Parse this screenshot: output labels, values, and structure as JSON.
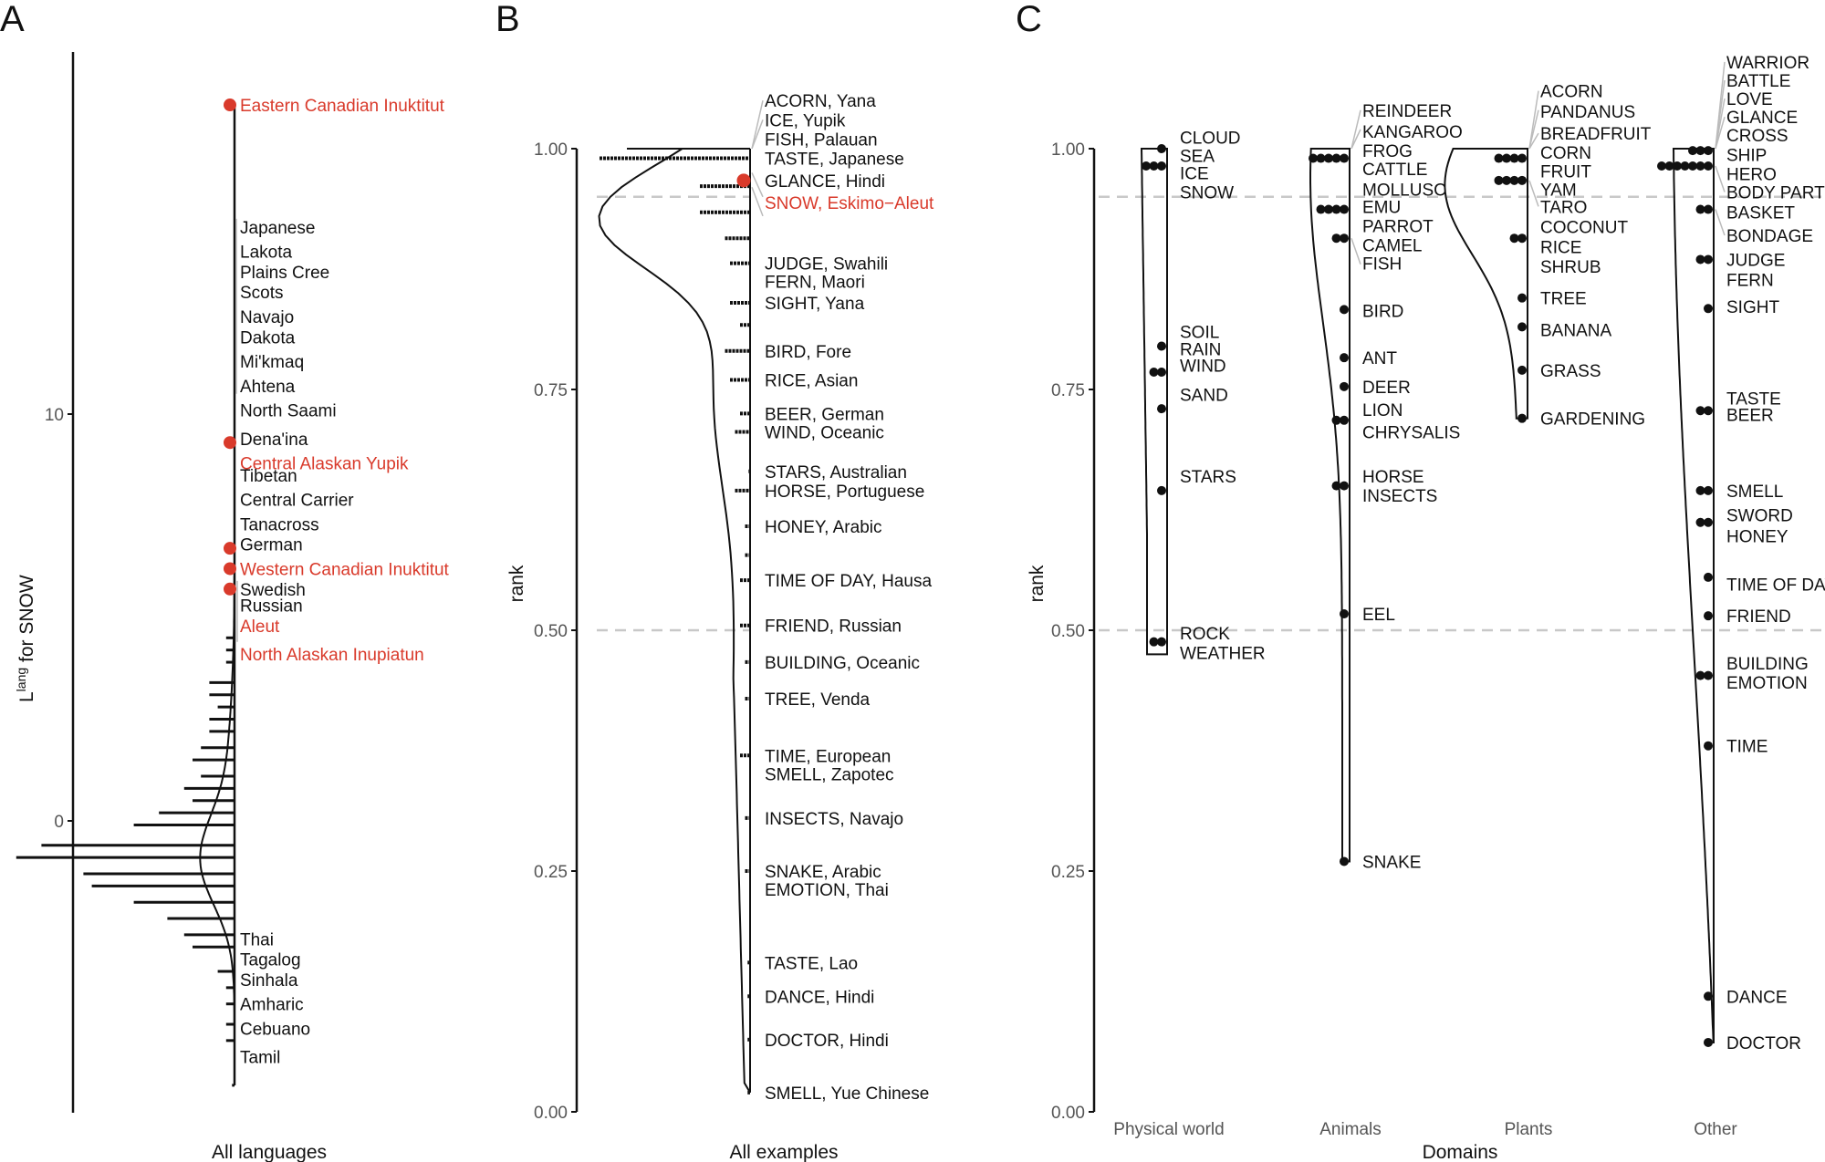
{
  "figure": {
    "panels": [
      "A",
      "B",
      "C"
    ]
  },
  "colors": {
    "highlight": "#d93a2b",
    "ink": "#111111",
    "guide": "#bbbbbb",
    "reference_line": "#c8c8c8"
  },
  "chart_data": [
    {
      "panel": "A",
      "type": "histogram-with-density",
      "ylabel_main": "L",
      "ylabel_sup": "lang",
      "ylabel_rest": " for SNOW",
      "xlabel": "All languages",
      "ylim": [
        -7.2,
        18.9
      ],
      "yticks": [
        0,
        10
      ],
      "histogram_bins": [
        {
          "y": 4.5,
          "count": 1
        },
        {
          "y": 4.2,
          "count": 1
        },
        {
          "y": 3.9,
          "count": 1
        },
        {
          "y": 3.4,
          "count": 3
        },
        {
          "y": 3.1,
          "count": 3
        },
        {
          "y": 2.8,
          "count": 2
        },
        {
          "y": 2.5,
          "count": 3
        },
        {
          "y": 2.2,
          "count": 3
        },
        {
          "y": 1.8,
          "count": 4
        },
        {
          "y": 1.5,
          "count": 5
        },
        {
          "y": 1.1,
          "count": 4
        },
        {
          "y": 0.8,
          "count": 6
        },
        {
          "y": 0.5,
          "count": 5
        },
        {
          "y": 0.2,
          "count": 9
        },
        {
          "y": -0.1,
          "count": 12
        },
        {
          "y": -0.6,
          "count": 23
        },
        {
          "y": -0.9,
          "count": 26
        },
        {
          "y": -1.3,
          "count": 18
        },
        {
          "y": -1.6,
          "count": 17
        },
        {
          "y": -2.0,
          "count": 12
        },
        {
          "y": -2.4,
          "count": 8
        },
        {
          "y": -2.8,
          "count": 6
        },
        {
          "y": -3.1,
          "count": 5
        },
        {
          "y": -3.7,
          "count": 2
        },
        {
          "y": -4.1,
          "count": 1
        },
        {
          "y": -4.5,
          "count": 1
        },
        {
          "y": -5.0,
          "count": 1
        },
        {
          "y": -5.4,
          "count": 1
        },
        {
          "y": -6.5,
          "count": 0.3
        }
      ],
      "highlight_points": [
        {
          "label": "Eastern Canadian Inuktitut",
          "y": 17.6
        },
        {
          "label": "Central Alaskan Yupik",
          "y": 9.3
        },
        {
          "label": "German",
          "y": 6.7
        },
        {
          "label": "Western Canadian Inuktitut",
          "y": 6.2
        },
        {
          "label": "Swedish",
          "y": 5.7
        }
      ],
      "labels": [
        {
          "text": "Eastern Canadian Inuktitut",
          "y": 17.6,
          "highlight": true
        },
        {
          "text": "Japanese",
          "y": 14.6,
          "highlight": false
        },
        {
          "text": "Lakota",
          "y": 14.0,
          "highlight": false
        },
        {
          "text": "Plains Cree",
          "y": 13.5,
          "highlight": false
        },
        {
          "text": "Scots",
          "y": 13.0,
          "highlight": false
        },
        {
          "text": "Navajo",
          "y": 12.4,
          "highlight": false
        },
        {
          "text": "Dakota",
          "y": 11.9,
          "highlight": false
        },
        {
          "text": "Mi'kmaq",
          "y": 11.3,
          "highlight": false
        },
        {
          "text": "Ahtena",
          "y": 10.7,
          "highlight": false
        },
        {
          "text": "North Saami",
          "y": 10.1,
          "highlight": false
        },
        {
          "text": "Dena'ina",
          "y": 9.4,
          "highlight": false
        },
        {
          "text": "Central Alaskan Yupik",
          "y": 8.8,
          "highlight": true
        },
        {
          "text": "Tibetan",
          "y": 8.5,
          "highlight": false
        },
        {
          "text": "Central Carrier",
          "y": 7.9,
          "highlight": false
        },
        {
          "text": "Tanacross",
          "y": 7.3,
          "highlight": false
        },
        {
          "text": "German",
          "y": 6.8,
          "highlight": false
        },
        {
          "text": "Western Canadian Inuktitut",
          "y": 6.2,
          "highlight": true
        },
        {
          "text": "Swedish",
          "y": 5.7,
          "highlight": false
        },
        {
          "text": "Russian",
          "y": 5.3,
          "highlight": false
        },
        {
          "text": "Aleut",
          "y": 4.8,
          "highlight": true
        },
        {
          "text": "North Alaskan Inupiatun",
          "y": 4.1,
          "highlight": true
        },
        {
          "text": "Thai",
          "y": -2.9,
          "highlight": false
        },
        {
          "text": "Tagalog",
          "y": -3.4,
          "highlight": false
        },
        {
          "text": "Sinhala",
          "y": -3.9,
          "highlight": false
        },
        {
          "text": "Amharic",
          "y": -4.5,
          "highlight": false
        },
        {
          "text": "Cebuano",
          "y": -5.1,
          "highlight": false
        },
        {
          "text": "Tamil",
          "y": -5.8,
          "highlight": false
        }
      ]
    },
    {
      "panel": "B",
      "type": "histogram-with-density",
      "ylabel": "rank",
      "xlabel": "All examples",
      "ylim": [
        0,
        1
      ],
      "yticks": [
        "0.00",
        "0.25",
        "0.50",
        "0.75",
        "1.00"
      ],
      "reference_lines": [
        0.95,
        0.5
      ],
      "histogram_bins": [
        {
          "y": 0.99,
          "count": 30
        },
        {
          "y": 0.961,
          "count": 10
        },
        {
          "y": 0.934,
          "count": 10
        },
        {
          "y": 0.907,
          "count": 5
        },
        {
          "y": 0.881,
          "count": 4
        },
        {
          "y": 0.84,
          "count": 4
        },
        {
          "y": 0.817,
          "count": 2
        },
        {
          "y": 0.79,
          "count": 5
        },
        {
          "y": 0.76,
          "count": 4
        },
        {
          "y": 0.725,
          "count": 2
        },
        {
          "y": 0.706,
          "count": 3
        },
        {
          "y": 0.665,
          "count": 0.3
        },
        {
          "y": 0.645,
          "count": 3
        },
        {
          "y": 0.608,
          "count": 1
        },
        {
          "y": 0.578,
          "count": 1
        },
        {
          "y": 0.552,
          "count": 2
        },
        {
          "y": 0.505,
          "count": 2
        },
        {
          "y": 0.467,
          "count": 1
        },
        {
          "y": 0.429,
          "count": 1
        },
        {
          "y": 0.37,
          "count": 2
        },
        {
          "y": 0.305,
          "count": 1
        },
        {
          "y": 0.25,
          "count": 1
        },
        {
          "y": 0.155,
          "count": 0.5
        },
        {
          "y": 0.12,
          "count": 0.5
        },
        {
          "y": 0.075,
          "count": 0.5
        },
        {
          "y": 0.02,
          "count": 0.5
        }
      ],
      "highlight_points": [
        {
          "label": "SNOW, Eskimo−Aleut",
          "y": 0.967
        }
      ],
      "labels": [
        {
          "text": "ACORN, Yana",
          "y": 1.0,
          "highlight": false
        },
        {
          "text": "ICE, Yupik",
          "y": 1.0,
          "highlight": false
        },
        {
          "text": "FISH, Palauan",
          "y": 1.0,
          "highlight": false
        },
        {
          "text": "TASTE, Japanese",
          "y": 0.99,
          "highlight": false
        },
        {
          "text": "GLANCE, Hindi",
          "y": 0.967,
          "highlight": false
        },
        {
          "text": "SNOW, Eskimo−Aleut",
          "y": 0.967,
          "highlight": true
        },
        {
          "text": "JUDGE, Swahili",
          "y": 0.881,
          "highlight": false
        },
        {
          "text": "FERN, Maori",
          "y": 0.881,
          "highlight": false
        },
        {
          "text": "SIGHT, Yana",
          "y": 0.84,
          "highlight": false
        },
        {
          "text": "BIRD, Fore",
          "y": 0.79,
          "highlight": false
        },
        {
          "text": "RICE, Asian",
          "y": 0.76,
          "highlight": false
        },
        {
          "text": "BEER, German",
          "y": 0.725,
          "highlight": false
        },
        {
          "text": "WIND, Oceanic",
          "y": 0.706,
          "highlight": false
        },
        {
          "text": "STARS, Australian",
          "y": 0.665,
          "highlight": false
        },
        {
          "text": "HORSE, Portuguese",
          "y": 0.645,
          "highlight": false
        },
        {
          "text": "HONEY, Arabic",
          "y": 0.608,
          "highlight": false
        },
        {
          "text": "TIME OF DAY, Hausa",
          "y": 0.552,
          "highlight": false
        },
        {
          "text": "FRIEND, Russian",
          "y": 0.505,
          "highlight": false
        },
        {
          "text": "BUILDING, Oceanic",
          "y": 0.467,
          "highlight": false
        },
        {
          "text": "TREE, Venda",
          "y": 0.429,
          "highlight": false
        },
        {
          "text": "TIME, European",
          "y": 0.37,
          "highlight": false
        },
        {
          "text": "SMELL, Zapotec",
          "y": 0.37,
          "highlight": false
        },
        {
          "text": "INSECTS, Navajo",
          "y": 0.305,
          "highlight": false
        },
        {
          "text": "SNAKE, Arabic",
          "y": 0.25,
          "highlight": false
        },
        {
          "text": "EMOTION, Thai",
          "y": 0.25,
          "highlight": false
        },
        {
          "text": "TASTE, Lao",
          "y": 0.155,
          "highlight": false
        },
        {
          "text": "DANCE, Hindi",
          "y": 0.12,
          "highlight": false
        },
        {
          "text": "DOCTOR, Hindi",
          "y": 0.075,
          "highlight": false
        },
        {
          "text": "SMELL, Yue Chinese",
          "y": 0.02,
          "highlight": false
        }
      ]
    },
    {
      "panel": "C",
      "type": "violin-dotplot",
      "ylabel": "rank",
      "xlabel": "Domains",
      "ylim": [
        0,
        1
      ],
      "yticks": [
        "0.00",
        "0.25",
        "0.50",
        "0.75",
        "1.00"
      ],
      "reference_lines": [
        0.95,
        0.5
      ],
      "categories": [
        "Physical world",
        "Animals",
        "Plants",
        "Other"
      ],
      "groups": [
        {
          "name": "Physical world",
          "range": [
            0.475,
            1.0
          ],
          "dots": [
            {
              "y": 1.0,
              "n": 1
            },
            {
              "y": 0.982,
              "n": 3
            },
            {
              "y": 0.795,
              "n": 1
            },
            {
              "y": 0.768,
              "n": 2
            },
            {
              "y": 0.73,
              "n": 1
            },
            {
              "y": 0.645,
              "n": 1
            },
            {
              "y": 0.488,
              "n": 2
            }
          ],
          "labels": [
            "CLOUD",
            "SEA",
            "ICE",
            "SNOW",
            "SOIL",
            "RAIN",
            "WIND",
            "SAND",
            "STARS",
            "ROCK",
            "WEATHER"
          ]
        },
        {
          "name": "Animals",
          "range": [
            0.26,
            1.0
          ],
          "dots": [
            {
              "y": 0.99,
              "n": 5
            },
            {
              "y": 0.937,
              "n": 4
            },
            {
              "y": 0.907,
              "n": 2
            },
            {
              "y": 0.833,
              "n": 1
            },
            {
              "y": 0.783,
              "n": 1
            },
            {
              "y": 0.753,
              "n": 1
            },
            {
              "y": 0.718,
              "n": 2
            },
            {
              "y": 0.65,
              "n": 2
            },
            {
              "y": 0.517,
              "n": 1
            },
            {
              "y": 0.26,
              "n": 1
            }
          ],
          "labels": [
            "REINDEER",
            "KANGAROO",
            "FROG",
            "CATTLE",
            "MOLLUSC",
            "EMU",
            "PARROT",
            "CAMEL",
            "FISH",
            "BIRD",
            "ANT",
            "DEER",
            "LION",
            "CHRYSALIS",
            "HORSE",
            "INSECTS",
            "EEL",
            "SNAKE"
          ]
        },
        {
          "name": "Plants",
          "range": [
            0.72,
            1.0
          ],
          "dots": [
            {
              "y": 0.99,
              "n": 4
            },
            {
              "y": 0.967,
              "n": 4
            },
            {
              "y": 0.907,
              "n": 2
            },
            {
              "y": 0.845,
              "n": 1
            },
            {
              "y": 0.815,
              "n": 1
            },
            {
              "y": 0.77,
              "n": 1
            },
            {
              "y": 0.72,
              "n": 1
            }
          ],
          "labels": [
            "ACORN",
            "PANDANUS",
            "BREADFRUIT",
            "CORN",
            "FRUIT",
            "YAM",
            "TARO",
            "COCONUT",
            "RICE",
            "SHRUB",
            "TREE",
            "BANANA",
            "GRASS",
            "GARDENING"
          ]
        },
        {
          "name": "Other",
          "range": [
            0.072,
            1.0
          ],
          "dots": [
            {
              "y": 0.998,
              "n": 3
            },
            {
              "y": 0.982,
              "n": 7
            },
            {
              "y": 0.937,
              "n": 2
            },
            {
              "y": 0.885,
              "n": 2
            },
            {
              "y": 0.834,
              "n": 1
            },
            {
              "y": 0.728,
              "n": 2
            },
            {
              "y": 0.645,
              "n": 2
            },
            {
              "y": 0.612,
              "n": 2
            },
            {
              "y": 0.555,
              "n": 1
            },
            {
              "y": 0.515,
              "n": 1
            },
            {
              "y": 0.453,
              "n": 2
            },
            {
              "y": 0.38,
              "n": 1
            },
            {
              "y": 0.12,
              "n": 1
            },
            {
              "y": 0.072,
              "n": 1
            }
          ],
          "labels": [
            "WARRIOR",
            "BATTLE",
            "LOVE",
            "GLANCE",
            "CROSS",
            "SHIP",
            "HERO",
            "BODY PARTS",
            "BASKET",
            "BONDAGE",
            "JUDGE",
            "FERN",
            "SIGHT",
            "TASTE",
            "BEER",
            "SMELL",
            "SWORD",
            "HONEY",
            "TIME OF DAY",
            "FRIEND",
            "BUILDING",
            "EMOTION",
            "TIME",
            "DANCE",
            "DOCTOR"
          ]
        }
      ]
    }
  ]
}
